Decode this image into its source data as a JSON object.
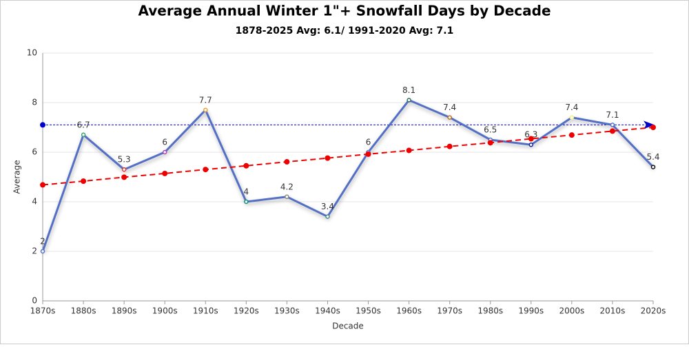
{
  "chart_data": {
    "type": "line",
    "title": "Average Annual Winter 1\"+ Snowfall Days by Decade",
    "subtitle": "1878-2025 Avg: 6.1/ 1991-2020 Avg: 7.1",
    "x_label": "Decade",
    "y_label": "Average",
    "categories": [
      "1870s",
      "1880s",
      "1890s",
      "1900s",
      "1910s",
      "1920s",
      "1930s",
      "1940s",
      "1950s",
      "1960s",
      "1970s",
      "1980s",
      "1990s",
      "2000s",
      "2010s",
      "2020s"
    ],
    "series": [
      {
        "color": "#5470c6",
        "values": [
          2,
          6.7,
          5.3,
          6,
          7.7,
          4,
          4.2,
          3.4,
          6,
          8.1,
          7.4,
          6.5,
          6.3,
          7.4,
          7.1,
          5.4
        ],
        "marker_colors": [
          "#5470c6",
          "#3ba272",
          "#ee3333",
          "#b040c0",
          "#f0a030",
          "#0e8f7f",
          "#888888",
          "#4a8a8a",
          "#5470c6",
          "#2f6f5f",
          "#c07020",
          "#5470c6",
          "#1020a0",
          "#f0f080",
          "#5470c6",
          "#111111"
        ]
      },
      {
        "color": "#ee0000",
        "style": "dashed",
        "values": [
          4.68,
          4.83,
          4.99,
          5.14,
          5.3,
          5.45,
          5.61,
          5.76,
          5.92,
          6.07,
          6.23,
          6.38,
          6.54,
          6.69,
          6.85,
          7.0
        ]
      }
    ],
    "reference_line": {
      "value": 7.1,
      "color": "#0000cc"
    },
    "ylim": [
      0,
      10
    ],
    "yticks": [
      0,
      2,
      4,
      6,
      8,
      10
    ],
    "grid": true
  }
}
